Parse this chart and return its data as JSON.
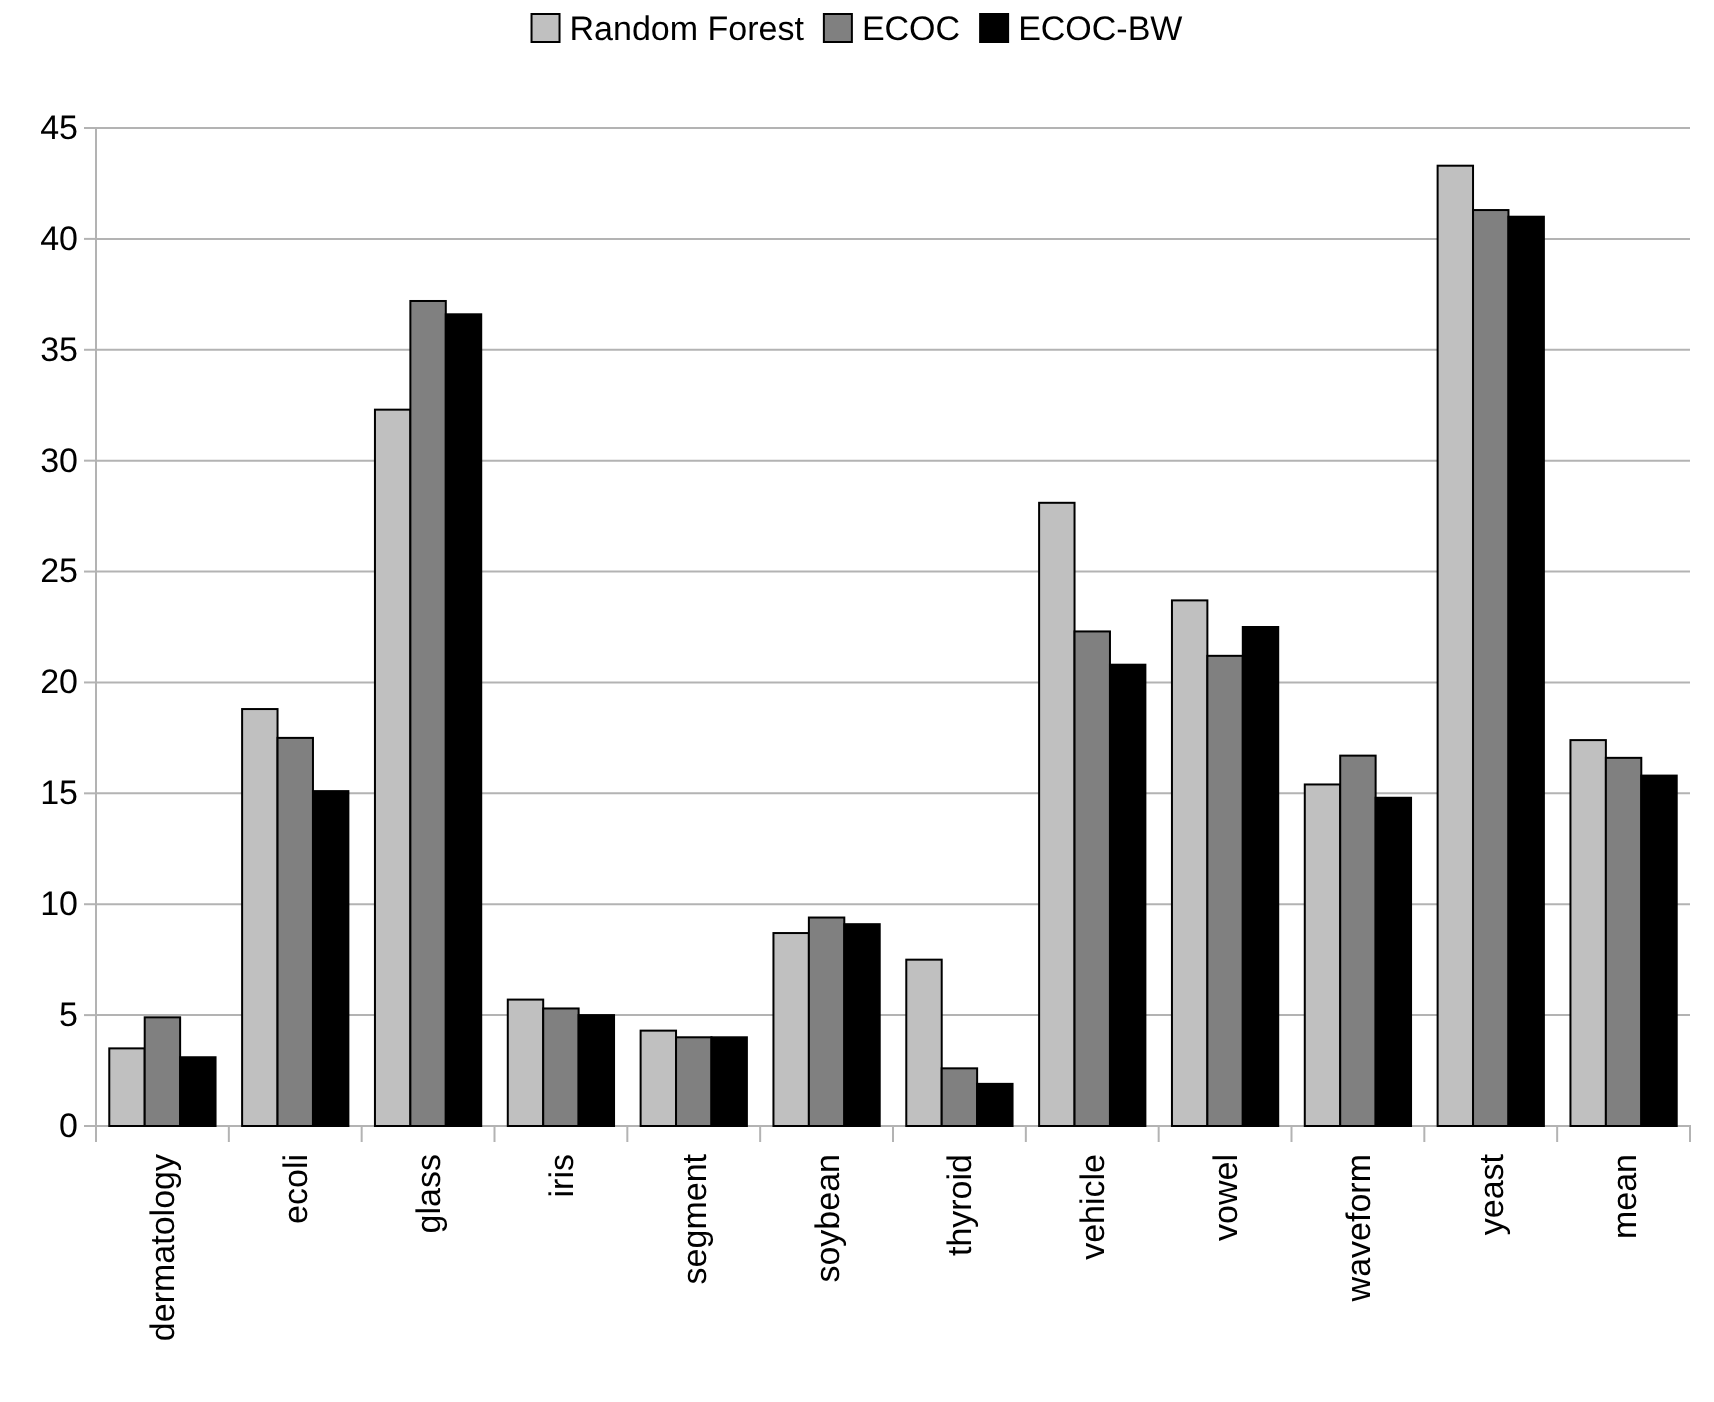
{
  "chart_data": {
    "type": "bar",
    "categories": [
      "dermatology",
      "ecoli",
      "glass",
      "iris",
      "segment",
      "soybean",
      "thyroid",
      "vehicle",
      "vowel",
      "waveform",
      "yeast",
      "mean"
    ],
    "series": [
      {
        "name": "Random Forest",
        "color": "#c0c0c0",
        "values": [
          3.5,
          18.8,
          32.3,
          5.7,
          4.3,
          8.7,
          7.5,
          28.1,
          23.7,
          15.4,
          43.3,
          17.4
        ]
      },
      {
        "name": "ECOC",
        "color": "#808080",
        "values": [
          4.9,
          17.5,
          37.2,
          5.3,
          4.0,
          9.4,
          2.6,
          22.3,
          21.2,
          16.7,
          41.3,
          16.6
        ]
      },
      {
        "name": "ECOC-BW",
        "color": "#000000",
        "values": [
          3.1,
          15.1,
          36.6,
          5.0,
          4.0,
          9.1,
          1.9,
          20.8,
          22.5,
          14.8,
          41.0,
          15.8
        ]
      }
    ],
    "ylim": [
      0,
      45
    ],
    "yticks": [
      0,
      5,
      10,
      15,
      20,
      25,
      30,
      35,
      40,
      45
    ],
    "grid": "y",
    "legend": "top"
  }
}
